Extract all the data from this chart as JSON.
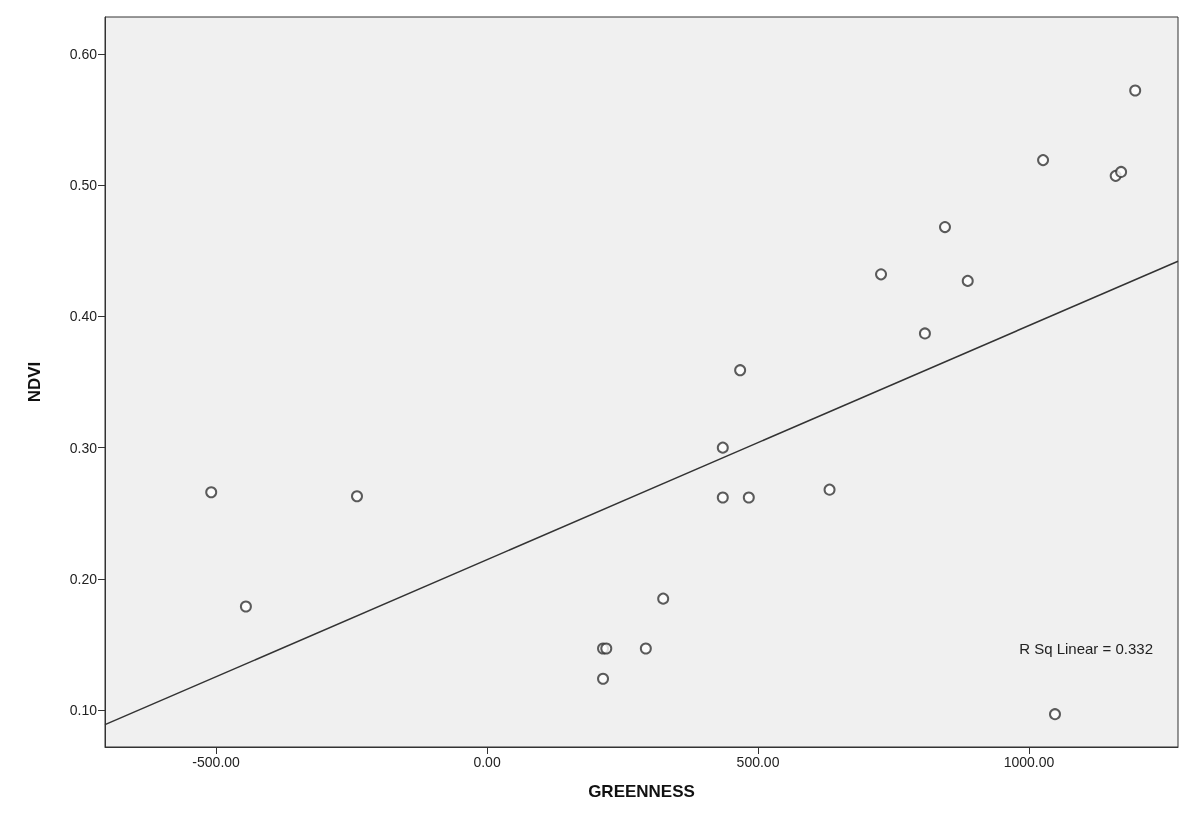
{
  "chart_data": {
    "type": "scatter",
    "xlabel": "GREENNESS",
    "ylabel": "NDVI",
    "xlim": [
      -705,
      1275
    ],
    "ylim": [
      0.072,
      0.628
    ],
    "xticks": [
      {
        "value": -500,
        "label": "-500.00"
      },
      {
        "value": 0,
        "label": "0.00"
      },
      {
        "value": 500,
        "label": "500.00"
      },
      {
        "value": 1000,
        "label": "1000.00"
      }
    ],
    "yticks": [
      {
        "value": 0.1,
        "label": "0.10"
      },
      {
        "value": 0.2,
        "label": "0.20"
      },
      {
        "value": 0.3,
        "label": "0.30"
      },
      {
        "value": 0.4,
        "label": "0.40"
      },
      {
        "value": 0.5,
        "label": "0.50"
      },
      {
        "value": 0.6,
        "label": "0.60"
      }
    ],
    "grid": false,
    "series": [
      {
        "marker": "circle",
        "color": "#333333",
        "x": [
          -509,
          -445,
          -240,
          214,
          220,
          214,
          293,
          325,
          435,
          435,
          483,
          467,
          632,
          727,
          808,
          845,
          887,
          1026,
          1048,
          1160,
          1170,
          1196
        ],
        "values": [
          0.266,
          0.179,
          0.263,
          0.147,
          0.147,
          0.124,
          0.147,
          0.185,
          0.3,
          0.262,
          0.262,
          0.359,
          0.268,
          0.432,
          0.387,
          0.468,
          0.427,
          0.519,
          0.097,
          0.507,
          0.51,
          0.572
        ]
      },
      {
        "type": "line",
        "marker": "none",
        "color": "#333333",
        "x": [
          -705,
          1275
        ],
        "values": [
          0.089,
          0.442
        ]
      }
    ],
    "annotations": [
      "R Sq Linear = 0.332"
    ]
  }
}
